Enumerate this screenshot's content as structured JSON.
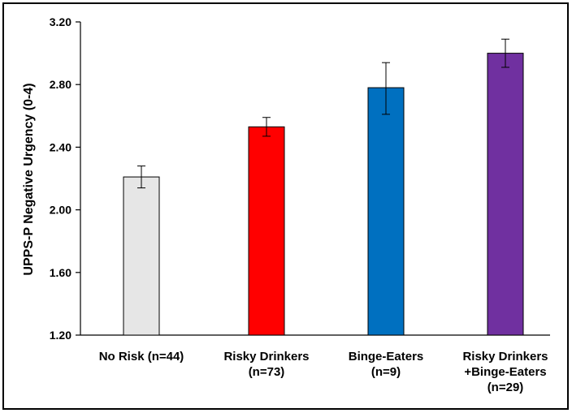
{
  "chart_data": {
    "type": "bar",
    "title": "",
    "xlabel": "",
    "ylabel": "UPPS-P Negative Urgency (0-4)",
    "ylim": [
      1.2,
      3.2
    ],
    "yticks": [
      "1.20",
      "1.60",
      "2.00",
      "2.40",
      "2.80",
      "3.20"
    ],
    "ytick_values": [
      1.2,
      1.6,
      2.0,
      2.4,
      2.8,
      3.2
    ],
    "grid": false,
    "legend": "none",
    "categories": [
      [
        "No Risk (n=44)"
      ],
      [
        "Risky Drinkers",
        "(n=73)"
      ],
      [
        "Binge-Eaters",
        "(n=9)"
      ],
      [
        "Risky Drinkers",
        "+Binge-Eaters",
        "(n=29)"
      ]
    ],
    "values": [
      2.21,
      2.53,
      2.78,
      3.0
    ],
    "error_low": [
      2.14,
      2.47,
      2.61,
      2.91
    ],
    "error_high": [
      2.28,
      2.59,
      2.94,
      3.09
    ],
    "colors": [
      "#e6e6e6",
      "#ff0000",
      "#0070c0",
      "#7030a0"
    ]
  }
}
